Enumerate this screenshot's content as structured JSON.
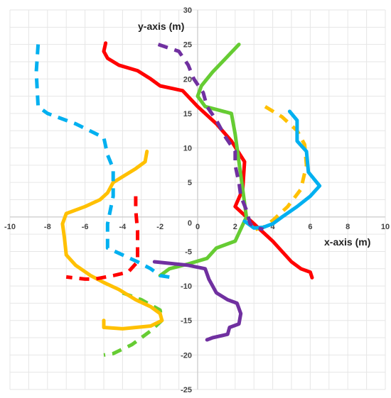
{
  "chart_data": {
    "type": "line",
    "xlabel": "x-axis (m)",
    "ylabel": "y-axis (m)",
    "xlim": [
      -10,
      10
    ],
    "ylim": [
      -25,
      30
    ],
    "xticks": [
      -10,
      -8,
      -6,
      -4,
      -2,
      0,
      2,
      4,
      6,
      8,
      10
    ],
    "yticks": [
      -25,
      -20,
      -15,
      -10,
      -5,
      0,
      5,
      10,
      15,
      20,
      25,
      30
    ],
    "grid": true,
    "legend": "none",
    "series": [
      {
        "color": "#ff0000",
        "dash": false,
        "points": [
          [
            -4.9,
            25.2
          ],
          [
            -5.0,
            24.0
          ],
          [
            -4.8,
            23.0
          ],
          [
            -4.2,
            22.0
          ],
          [
            -3.2,
            21.2
          ],
          [
            -2.5,
            20.0
          ],
          [
            -2.0,
            19.0
          ],
          [
            -0.8,
            18.3
          ],
          [
            0,
            16.0
          ],
          [
            1.0,
            13.5
          ],
          [
            1.8,
            11.0
          ],
          [
            2.5,
            8.0
          ],
          [
            2.4,
            4.0
          ],
          [
            2.0,
            1.5
          ],
          [
            3.0,
            -1.0
          ],
          [
            4.0,
            -3.5
          ],
          [
            4.5,
            -5.0
          ],
          [
            5.0,
            -6.5
          ],
          [
            5.5,
            -7.5
          ],
          [
            6.0,
            -8.0
          ],
          [
            6.1,
            -8.8
          ]
        ]
      },
      {
        "color": "#66cc33",
        "dash": false,
        "points": [
          [
            2.2,
            25.0
          ],
          [
            1.5,
            23.0
          ],
          [
            0.8,
            21.0
          ],
          [
            0.2,
            19.0
          ],
          [
            0,
            17.5
          ],
          [
            0.4,
            16.0
          ],
          [
            1.8,
            15.0
          ],
          [
            2.0,
            12.0
          ],
          [
            2.2,
            8.0
          ],
          [
            2.4,
            4.0
          ],
          [
            2.6,
            0
          ],
          [
            2.0,
            -3.5
          ],
          [
            1.0,
            -4.5
          ],
          [
            0.5,
            -6.0
          ],
          [
            -0.5,
            -6.8
          ],
          [
            -1.5,
            -7.5
          ],
          [
            -2.0,
            -8.5
          ]
        ]
      },
      {
        "color": "#66cc33",
        "dash": true,
        "points": [
          [
            -4.0,
            -11.0
          ],
          [
            -3.0,
            -12.0
          ],
          [
            -2.0,
            -13.5
          ],
          [
            -1.9,
            -15.0
          ],
          [
            -2.5,
            -16.5
          ],
          [
            -3.5,
            -18.5
          ],
          [
            -4.5,
            -19.8
          ],
          [
            -5.0,
            -20.0
          ]
        ]
      },
      {
        "color": "#ffc000",
        "dash": false,
        "points": [
          [
            -2.7,
            9.5
          ],
          [
            -2.8,
            8.0
          ],
          [
            -3.3,
            7.0
          ],
          [
            -3.9,
            6.0
          ],
          [
            -4.5,
            5.0
          ],
          [
            -4.8,
            3.5
          ],
          [
            -5.2,
            2.5
          ],
          [
            -6.0,
            1.5
          ],
          [
            -7.0,
            0.5
          ],
          [
            -7.2,
            -1.0
          ],
          [
            -7.1,
            -3.0
          ],
          [
            -7.0,
            -5.5
          ],
          [
            -6.5,
            -7.0
          ],
          [
            -5.7,
            -8.5
          ],
          [
            -5.0,
            -9.5
          ],
          [
            -4.2,
            -10.5
          ],
          [
            -3.3,
            -12.0
          ],
          [
            -2.5,
            -13.0
          ],
          [
            -2.0,
            -14.0
          ],
          [
            -1.9,
            -15.0
          ],
          [
            -2.5,
            -15.8
          ],
          [
            -4.0,
            -16.2
          ],
          [
            -5.0,
            -16.0
          ],
          [
            -5.0,
            -15.0
          ]
        ]
      },
      {
        "color": "#ffc000",
        "dash": true,
        "points": [
          [
            3.6,
            16.0
          ],
          [
            4.5,
            14.5
          ],
          [
            5.3,
            12.5
          ],
          [
            5.7,
            10.5
          ],
          [
            5.8,
            7.5
          ],
          [
            5.5,
            4.0
          ],
          [
            4.8,
            1.5
          ],
          [
            4.0,
            -0.5
          ],
          [
            3.5,
            -1.5
          ],
          [
            2.8,
            -2.0
          ]
        ]
      },
      {
        "color": "#ff0000",
        "dash": true,
        "points": [
          [
            -3.3,
            3.0
          ],
          [
            -3.3,
            1.0
          ],
          [
            -3.2,
            -2.0
          ],
          [
            -3.2,
            -4.0
          ],
          [
            -3.2,
            -6.5
          ],
          [
            -3.7,
            -8.0
          ],
          [
            -4.5,
            -8.5
          ],
          [
            -5.5,
            -9.0
          ],
          [
            -6.0,
            -9.0
          ],
          [
            -7.0,
            -8.7
          ]
        ]
      },
      {
        "color": "#00b0f0",
        "dash": true,
        "points": [
          [
            -8.5,
            25.0
          ],
          [
            -8.6,
            21.0
          ],
          [
            -8.5,
            16.0
          ],
          [
            -8.0,
            15.0
          ],
          [
            -6.5,
            13.5
          ],
          [
            -5.0,
            11.5
          ],
          [
            -4.8,
            9.0
          ],
          [
            -4.5,
            7.0
          ],
          [
            -4.5,
            3.0
          ],
          [
            -4.8,
            -1.0
          ],
          [
            -4.8,
            -4.5
          ],
          [
            -4.0,
            -5.5
          ],
          [
            -3.2,
            -6.5
          ],
          [
            -2.5,
            -7.5
          ],
          [
            -2.0,
            -8.5
          ],
          [
            -1.3,
            -8.8
          ]
        ]
      },
      {
        "color": "#00b0f0",
        "dash": false,
        "points": [
          [
            4.9,
            15.3
          ],
          [
            5.3,
            14.0
          ],
          [
            5.3,
            11.0
          ],
          [
            5.8,
            9.5
          ],
          [
            5.9,
            6.5
          ],
          [
            6.2,
            5.5
          ],
          [
            6.5,
            4.5
          ],
          [
            6.0,
            3.0
          ],
          [
            5.3,
            1.5
          ],
          [
            4.5,
            0
          ],
          [
            4.0,
            -1.0
          ],
          [
            3.5,
            -1.5
          ],
          [
            3.0,
            -1.6
          ],
          [
            2.5,
            -0.6
          ]
        ]
      },
      {
        "color": "#7030a0",
        "dash": true,
        "points": [
          [
            -2.1,
            25.0
          ],
          [
            -1.0,
            24.0
          ],
          [
            -0.5,
            22.0
          ],
          [
            -0.2,
            20.0
          ],
          [
            0.3,
            18.0
          ],
          [
            0.5,
            16.0
          ],
          [
            1.0,
            14.0
          ],
          [
            1.5,
            11.5
          ],
          [
            2.0,
            9.5
          ],
          [
            2.0,
            7.5
          ],
          [
            2.2,
            5.0
          ],
          [
            2.3,
            3.0
          ],
          [
            2.6,
            1.0
          ],
          [
            2.8,
            -1.0
          ],
          [
            3.2,
            -1.6
          ],
          [
            3.5,
            -1.8
          ]
        ]
      },
      {
        "color": "#7030a0",
        "dash": false,
        "points": [
          [
            -2.3,
            -6.5
          ],
          [
            -0.5,
            -7.0
          ],
          [
            0.4,
            -7.5
          ],
          [
            0.6,
            -9.0
          ],
          [
            1.0,
            -11.0
          ],
          [
            1.6,
            -12.0
          ],
          [
            2.1,
            -12.5
          ],
          [
            2.3,
            -14.0
          ],
          [
            2.2,
            -15.5
          ],
          [
            1.7,
            -16.0
          ],
          [
            1.6,
            -17.0
          ],
          [
            0.8,
            -17.5
          ],
          [
            0.5,
            -17.8
          ]
        ]
      }
    ]
  }
}
